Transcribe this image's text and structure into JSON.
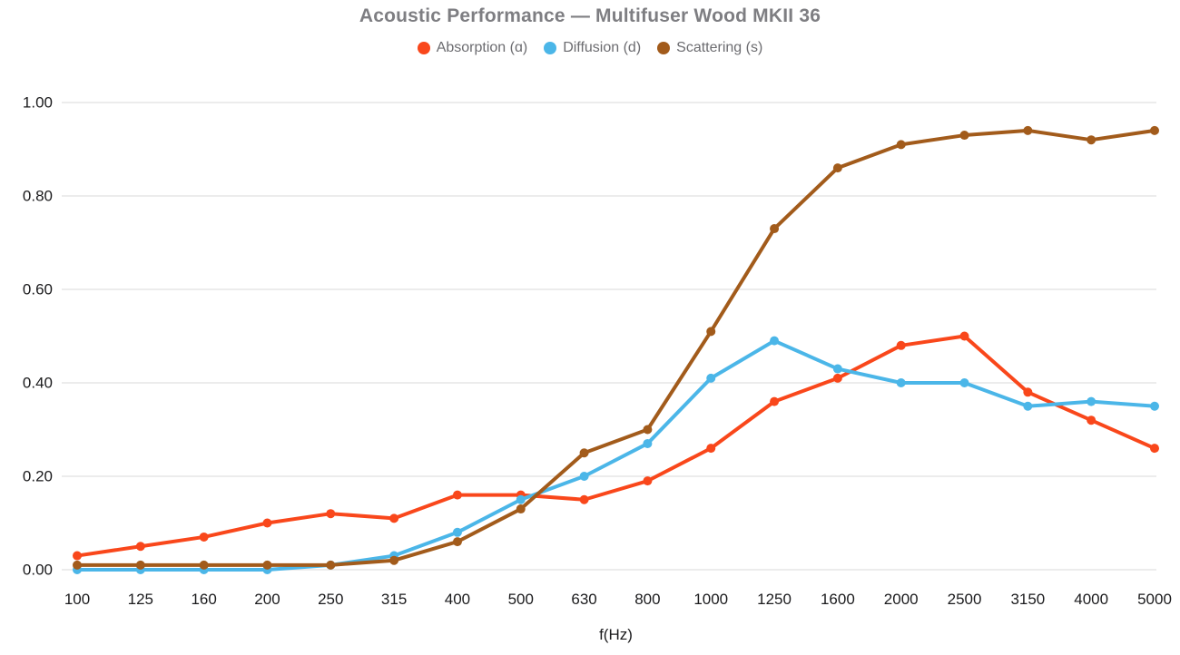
{
  "colors": {
    "background": "#FFFFFF",
    "grid": "#E6E6E6",
    "axis_text": "#1B1B1D",
    "title_text": "#7E7E82",
    "legend_text": "#6C6C70",
    "absorption": "#F9471B",
    "diffusion": "#4BB6E8",
    "scattering": "#A25B1B"
  },
  "chart_data": {
    "type": "line",
    "title": "Acoustic Performance — Multifuser Wood MKII 36",
    "xlabel": "f(Hz)",
    "ylabel": "",
    "x": [
      "100",
      "125",
      "160",
      "200",
      "250",
      "315",
      "400",
      "500",
      "630",
      "800",
      "1000",
      "1250",
      "1600",
      "2000",
      "2500",
      "3150",
      "4000",
      "5000"
    ],
    "ylim": [
      0,
      1
    ],
    "yticks": [
      "0.00",
      "0.20",
      "0.40",
      "0.60",
      "0.80",
      "1.00"
    ],
    "grid": true,
    "legend_position": "top",
    "markers": true,
    "series": [
      {
        "name": "Absorption (ɑ)",
        "slug": "absorption",
        "color": "#F9471B",
        "values": [
          0.03,
          0.05,
          0.07,
          0.1,
          0.12,
          0.11,
          0.16,
          0.16,
          0.15,
          0.19,
          0.26,
          0.36,
          0.41,
          0.48,
          0.5,
          0.38,
          0.32,
          0.26
        ]
      },
      {
        "name": "Diffusion (d)",
        "slug": "diffusion",
        "color": "#4BB6E8",
        "values": [
          0.0,
          0.0,
          0.0,
          0.0,
          0.01,
          0.03,
          0.08,
          0.15,
          0.2,
          0.27,
          0.41,
          0.49,
          0.43,
          0.4,
          0.4,
          0.35,
          0.36,
          0.35
        ]
      },
      {
        "name": "Scattering (s)",
        "slug": "scattering",
        "color": "#A25B1B",
        "values": [
          0.01,
          0.01,
          0.01,
          0.01,
          0.01,
          0.02,
          0.06,
          0.13,
          0.25,
          0.3,
          0.51,
          0.73,
          0.86,
          0.91,
          0.93,
          0.94,
          0.92,
          0.94
        ]
      }
    ]
  }
}
